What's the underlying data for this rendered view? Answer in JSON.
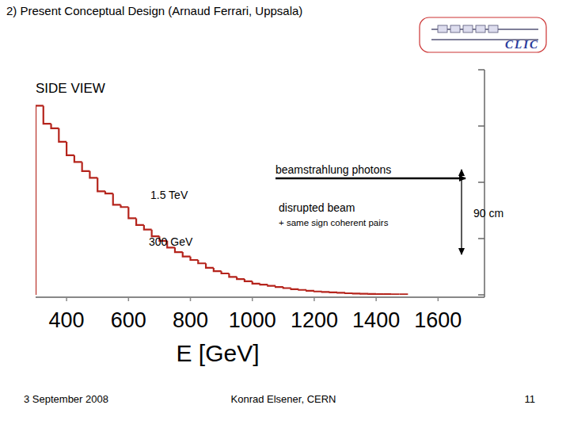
{
  "slide": {
    "title": "2) Present Conceptual Design (Arnaud Ferrari, Uppsala)",
    "logo": "CLIC",
    "footer_date": "3 September 2008",
    "footer_author": "Konrad Elsener, CERN",
    "page": 11
  },
  "chart_data": {
    "type": "histogram",
    "x_label": "E [GeV]",
    "color": "#b5241c",
    "annotations": [
      "SIDE VIEW",
      "beamstrahlung photons",
      "1.5 TeV",
      "disrupted beam",
      "+ same sign coherent pairs",
      "90 cm",
      "300 GeV"
    ],
    "bins": [
      300,
      325,
      350,
      375,
      400,
      425,
      450,
      475,
      500,
      525,
      550,
      575,
      600,
      625,
      650,
      675,
      700,
      725,
      750,
      775,
      800,
      825,
      850,
      875,
      900,
      925,
      950,
      975,
      1000,
      1025,
      1050,
      1075,
      1100,
      1125,
      1150,
      1175,
      1200,
      1225,
      1250,
      1275,
      1300,
      1325,
      1350,
      1375,
      1400,
      1425,
      1450,
      1475,
      1500
    ],
    "values": [
      84,
      76,
      74,
      68,
      62,
      59,
      55,
      52,
      46,
      45,
      40,
      39,
      34,
      31,
      29,
      26,
      24,
      21,
      19,
      17,
      15.5,
      14,
      12,
      10.5,
      9.5,
      8,
      7,
      6,
      5,
      4.5,
      4,
      3.5,
      3,
      2.5,
      2.2,
      1.8,
      1.5,
      1.3,
      1.1,
      0.9,
      0.7,
      0.6,
      0.5,
      0.4,
      0.35,
      0.3,
      0.2,
      0.2
    ],
    "xlim": [
      300,
      1750
    ],
    "xticks": [
      400,
      600,
      800,
      1000,
      1200,
      1400,
      1600
    ],
    "ylim": [
      0,
      100
    ],
    "yticks": [
      0,
      25,
      50,
      75,
      100
    ],
    "tick_labels": "x",
    "grid": false
  }
}
